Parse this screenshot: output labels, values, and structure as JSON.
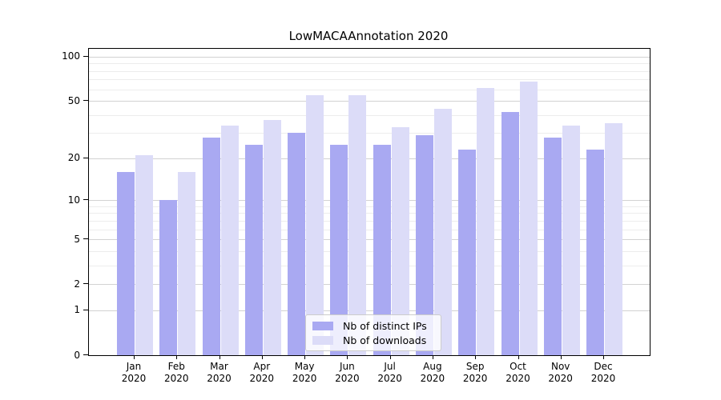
{
  "title": "LowMACAAnnotation 2020",
  "chart_data": {
    "type": "bar",
    "title": "LowMACAAnnotation 2020",
    "categories": [
      {
        "month": "Jan",
        "year": "2020"
      },
      {
        "month": "Feb",
        "year": "2020"
      },
      {
        "month": "Mar",
        "year": "2020"
      },
      {
        "month": "Apr",
        "year": "2020"
      },
      {
        "month": "May",
        "year": "2020"
      },
      {
        "month": "Jun",
        "year": "2020"
      },
      {
        "month": "Jul",
        "year": "2020"
      },
      {
        "month": "Aug",
        "year": "2020"
      },
      {
        "month": "Sep",
        "year": "2020"
      },
      {
        "month": "Oct",
        "year": "2020"
      },
      {
        "month": "Nov",
        "year": "2020"
      },
      {
        "month": "Dec",
        "year": "2020"
      }
    ],
    "series": [
      {
        "name": "Nb of distinct IPs",
        "color": "#a9a9f2",
        "values": [
          16,
          10,
          28,
          25,
          30,
          25,
          25,
          29,
          23,
          42,
          28,
          23
        ]
      },
      {
        "name": "Nb of downloads",
        "color": "#dcdcf8",
        "values": [
          21,
          16,
          34,
          37,
          55,
          55,
          33,
          44,
          61,
          68,
          34,
          35
        ]
      }
    ],
    "xlabel": "",
    "ylabel": "",
    "yscale": "log1p",
    "ylim": [
      0,
      113
    ],
    "y_major_ticks": [
      0,
      1,
      2,
      5,
      10,
      20,
      50,
      100
    ],
    "y_minor_ticks": [
      3,
      4,
      6,
      7,
      8,
      9,
      30,
      40,
      60,
      70,
      80,
      90
    ],
    "grid": true,
    "legend_position": "lower center",
    "colors": {
      "major_grid": "#d2d2d2",
      "minor_grid": "#ececec",
      "spine": "#000000",
      "background": "#ffffff"
    }
  }
}
